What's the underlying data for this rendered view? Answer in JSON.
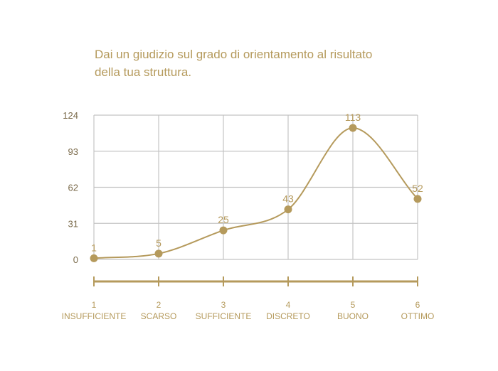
{
  "title_lines": [
    "Dai un giudizio sul grado di orientamento al risultato",
    "della tua struttura."
  ],
  "colors": {
    "accent": "#b59a5c",
    "grid": "#c4c4c4",
    "tick_text": "#7a6a4a"
  },
  "chart_data": {
    "type": "line",
    "smooth": true,
    "x": [
      1,
      2,
      3,
      4,
      5,
      6
    ],
    "categories": [
      "INSUFFICIENTE",
      "SCARSO",
      "SUFFICIENTE",
      "DISCRETO",
      "BUONO",
      "OTTIMO"
    ],
    "values": [
      1,
      5,
      25,
      43,
      113,
      52
    ],
    "ylim": [
      0,
      124
    ],
    "yticks": [
      0,
      31,
      62,
      93,
      124
    ],
    "grid": true,
    "data_labels": true
  }
}
